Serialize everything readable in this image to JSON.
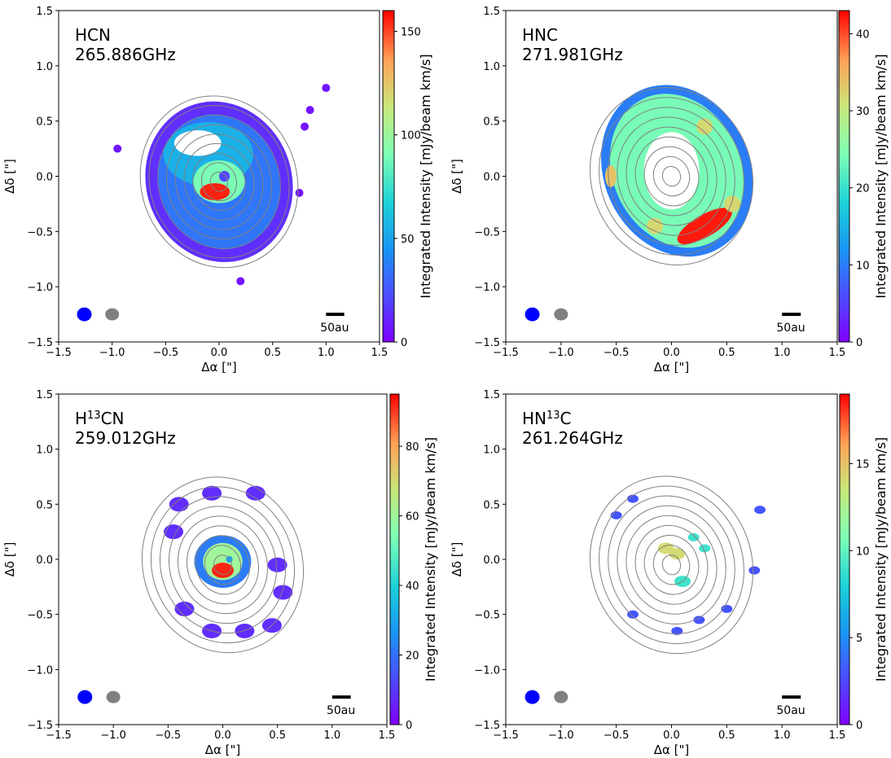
{
  "figure": {
    "colormap": "rainbow",
    "contour_color": "#808080",
    "beam_colors": [
      "#0000ff",
      "#808080"
    ],
    "scalebar_label": "50au",
    "cbar_label": "Integrated Intensity [mJy/beam km/s]",
    "xlabel": "Δα [\"]",
    "ylabel": "Δδ [\"]"
  },
  "chart_data": [
    {
      "type": "heatmap",
      "molecule": "HCN",
      "frequency": "265.886GHz",
      "xlim": [
        -1.5,
        1.5
      ],
      "ylim": [
        -1.5,
        1.5
      ],
      "xticks": [
        "−1.5",
        "−1.0",
        "−0.5",
        "0.0",
        "0.5",
        "1.0",
        "1.5"
      ],
      "yticks": [
        "−1.5",
        "−1.0",
        "−0.5",
        "0.0",
        "0.5",
        "1.0",
        "1.5"
      ],
      "clim": [
        0,
        160
      ],
      "cbar_ticks": [
        0,
        50,
        100,
        150
      ],
      "emission": "full disk with central peak; outer ring extends to ~0.9\"",
      "peak_position": [
        -0.05,
        -0.15
      ],
      "peak_value": 155
    },
    {
      "type": "heatmap",
      "molecule": "HNC",
      "frequency": "271.981GHz",
      "xlim": [
        -1.5,
        1.5
      ],
      "ylim": [
        -1.5,
        1.5
      ],
      "xticks": [
        "−1.5",
        "−1.0",
        "−0.5",
        "0.0",
        "0.5",
        "1.0",
        "1.5"
      ],
      "yticks": [
        "−1.5",
        "−1.0",
        "−0.5",
        "0.0",
        "0.5",
        "1.0",
        "1.5"
      ],
      "clim": [
        0,
        43
      ],
      "cbar_ticks": [
        0,
        10,
        20,
        30,
        40
      ],
      "emission": "ring with central cavity; brightest on south-west arc",
      "peak_position": [
        0.35,
        -0.45
      ],
      "peak_value": 42
    },
    {
      "type": "heatmap",
      "molecule": "H13CN",
      "mol_parts": [
        "H",
        "13",
        "CN"
      ],
      "frequency": "259.012GHz",
      "xlim": [
        -1.5,
        1.5
      ],
      "ylim": [
        -1.5,
        1.5
      ],
      "xticks": [
        "−1.5",
        "−1.0",
        "−0.5",
        "0.0",
        "0.5",
        "1.0",
        "1.5"
      ],
      "yticks": [
        "−1.5",
        "−1.0",
        "−0.5",
        "0.0",
        "0.5",
        "1.0",
        "1.5"
      ],
      "clim": [
        0,
        95
      ],
      "cbar_ticks": [
        0,
        20,
        40,
        60,
        80
      ],
      "emission": "compact central peak plus patchy outer ring",
      "peak_position": [
        0.0,
        -0.1
      ],
      "peak_value": 92
    },
    {
      "type": "heatmap",
      "molecule": "HN13C",
      "mol_parts": [
        "HN",
        "13",
        "C"
      ],
      "frequency": "261.264GHz",
      "xlim": [
        -1.5,
        1.5
      ],
      "ylim": [
        -1.5,
        1.5
      ],
      "xticks": [
        "−1.5",
        "−1.0",
        "−0.5",
        "0.0",
        "0.5",
        "1.0",
        "1.5"
      ],
      "yticks": [
        "−1.5",
        "−1.0",
        "−0.5",
        "0.0",
        "0.5",
        "1.0",
        "1.5"
      ],
      "clim": [
        0,
        19
      ],
      "cbar_ticks": [
        0,
        5,
        10,
        15
      ],
      "emission": "sparse knots near centre and in outer disk",
      "peak_position": [
        0.0,
        0.1
      ],
      "peak_value": 14
    }
  ]
}
